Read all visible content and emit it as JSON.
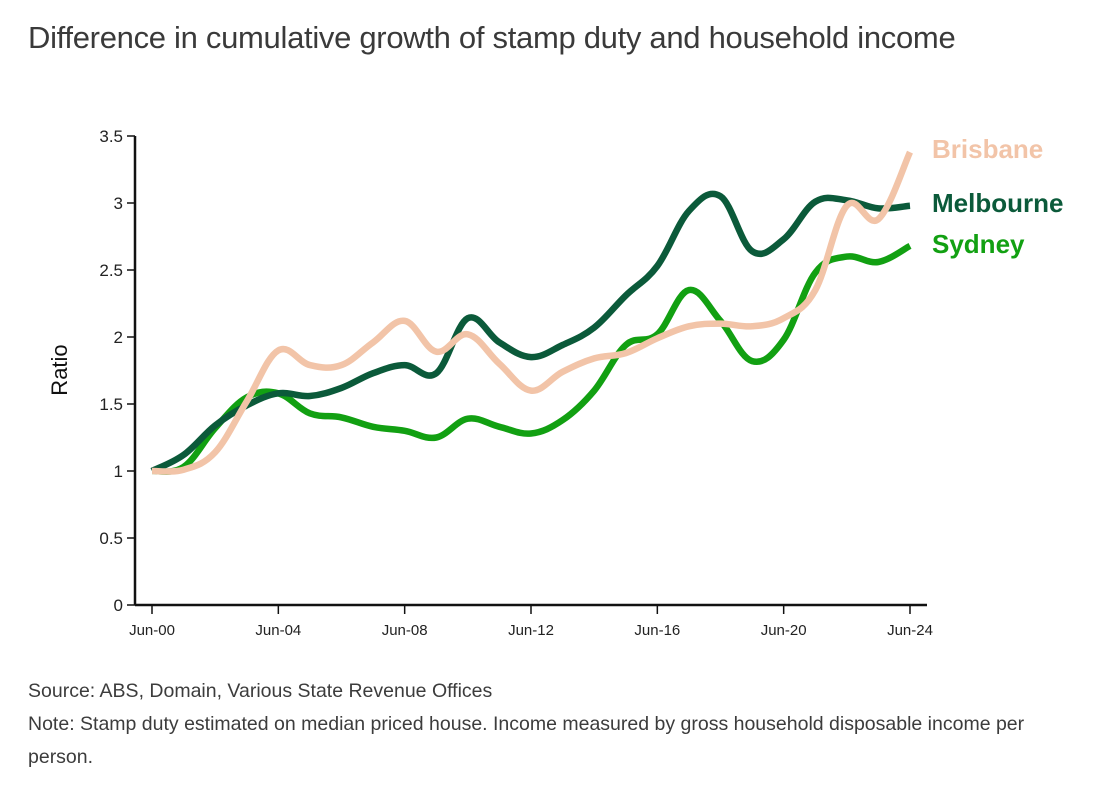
{
  "title": "Difference in cumulative growth of stamp duty and household income",
  "footer": {
    "source": "Source: ABS, Domain, Various State Revenue Offices",
    "note": "Note: Stamp duty estimated on median priced house. Income measured by gross household disposable income per person."
  },
  "chart_data": {
    "type": "line",
    "title": "Difference in cumulative growth of stamp duty and household income",
    "xlabel": "",
    "ylabel": "Ratio",
    "ylim": [
      0,
      3.5
    ],
    "yticks": [
      0,
      0.5,
      1,
      1.5,
      2,
      2.5,
      3,
      3.5
    ],
    "ytick_labels": [
      "0",
      "0.5",
      "1",
      "1.5",
      "2",
      "2.5",
      "3",
      "3.5"
    ],
    "x": [
      "Jun-00",
      "Jun-01",
      "Jun-02",
      "Jun-03",
      "Jun-04",
      "Jun-05",
      "Jun-06",
      "Jun-07",
      "Jun-08",
      "Jun-09",
      "Jun-10",
      "Jun-11",
      "Jun-12",
      "Jun-13",
      "Jun-14",
      "Jun-15",
      "Jun-16",
      "Jun-17",
      "Jun-18",
      "Jun-19",
      "Jun-20",
      "Jun-21",
      "Jun-22",
      "Jun-23",
      "Jun-24"
    ],
    "xtick_labels": [
      "Jun-00",
      "Jun-04",
      "Jun-08",
      "Jun-12",
      "Jun-16",
      "Jun-20",
      "Jun-24"
    ],
    "grid": false,
    "legend": "right (direct labels at line ends)",
    "series": [
      {
        "name": "Brisbane",
        "color": "#F2C4A8",
        "values": [
          1.0,
          1.01,
          1.14,
          1.52,
          1.9,
          1.79,
          1.79,
          1.96,
          2.12,
          1.89,
          2.02,
          1.8,
          1.6,
          1.74,
          1.84,
          1.88,
          1.99,
          2.08,
          2.1,
          2.08,
          2.14,
          2.35,
          2.98,
          2.88,
          3.38
        ]
      },
      {
        "name": "Melbourne",
        "color": "#0B5A3A",
        "values": [
          1.0,
          1.12,
          1.34,
          1.49,
          1.58,
          1.56,
          1.62,
          1.73,
          1.79,
          1.73,
          2.14,
          1.96,
          1.85,
          1.94,
          2.07,
          2.31,
          2.53,
          2.94,
          3.05,
          2.64,
          2.73,
          3.01,
          3.02,
          2.96,
          2.98
        ]
      },
      {
        "name": "Sydney",
        "color": "#12A012",
        "values": [
          1.0,
          1.03,
          1.32,
          1.55,
          1.58,
          1.43,
          1.4,
          1.33,
          1.3,
          1.25,
          1.39,
          1.33,
          1.28,
          1.38,
          1.6,
          1.94,
          2.02,
          2.35,
          2.12,
          1.82,
          1.98,
          2.48,
          2.6,
          2.56,
          2.68
        ]
      }
    ]
  }
}
